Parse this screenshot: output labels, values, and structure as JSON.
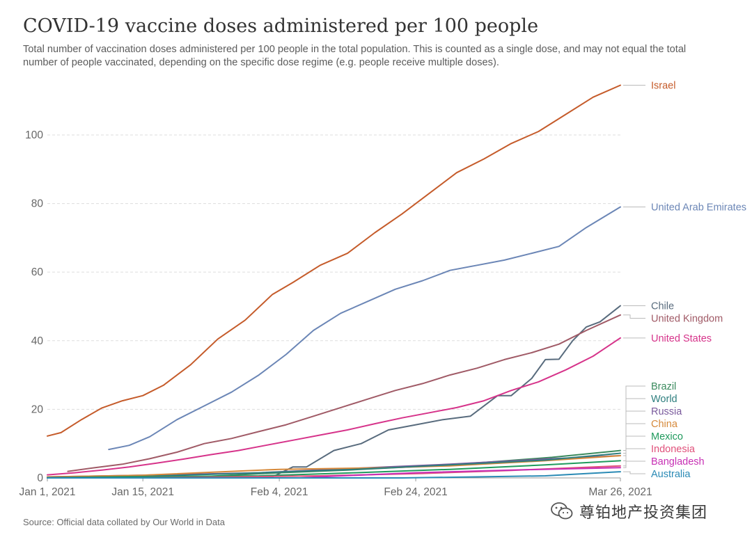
{
  "chart_data": {
    "type": "line",
    "title": "COVID-19 vaccine doses administered per 100 people",
    "subtitle": "Total number of vaccination doses administered per 100 people in the total population. This is counted as a single dose, and may not equal the total number of people vaccinated, depending on the specific dose regime (e.g. people receive multiple doses).",
    "source": "Source: Official data collated by Our World in Data",
    "x_range": [
      "2021-01-01",
      "2021-03-26"
    ],
    "x_ticks": [
      {
        "date": "2021-01-01",
        "label": "Jan 1, 2021"
      },
      {
        "date": "2021-01-15",
        "label": "Jan 15, 2021"
      },
      {
        "date": "2021-02-04",
        "label": "Feb 4, 2021"
      },
      {
        "date": "2021-02-24",
        "label": "Feb 24, 2021"
      },
      {
        "date": "2021-03-26",
        "label": "Mar 26, 2021"
      }
    ],
    "ylim": [
      0,
      115
    ],
    "y_ticks": [
      0,
      20,
      40,
      60,
      80,
      100
    ],
    "grid": "horizontal-dashed",
    "legend": "right-side-line-labels",
    "series": [
      {
        "name": "Israel",
        "color": "#c55b2a",
        "points": [
          [
            "2021-01-01",
            12.2
          ],
          [
            "2021-01-03",
            13.2
          ],
          [
            "2021-01-06",
            17.0
          ],
          [
            "2021-01-09",
            20.4
          ],
          [
            "2021-01-12",
            22.5
          ],
          [
            "2021-01-15",
            24.0
          ],
          [
            "2021-01-18",
            27.0
          ],
          [
            "2021-01-22",
            33.0
          ],
          [
            "2021-01-26",
            40.5
          ],
          [
            "2021-01-30",
            46.0
          ],
          [
            "2021-02-03",
            53.5
          ],
          [
            "2021-02-06",
            57.0
          ],
          [
            "2021-02-10",
            62.0
          ],
          [
            "2021-02-14",
            65.5
          ],
          [
            "2021-02-18",
            71.5
          ],
          [
            "2021-02-22",
            77.0
          ],
          [
            "2021-02-26",
            83.0
          ],
          [
            "2021-03-02",
            89.0
          ],
          [
            "2021-03-06",
            93.0
          ],
          [
            "2021-03-10",
            97.5
          ],
          [
            "2021-03-14",
            101.0
          ],
          [
            "2021-03-18",
            106.0
          ],
          [
            "2021-03-22",
            111.0
          ],
          [
            "2021-03-26",
            114.5
          ]
        ]
      },
      {
        "name": "United Arab Emirates",
        "color": "#6b86b6",
        "points": [
          [
            "2021-01-10",
            8.3
          ],
          [
            "2021-01-13",
            9.5
          ],
          [
            "2021-01-16",
            12.0
          ],
          [
            "2021-01-20",
            17.0
          ],
          [
            "2021-01-24",
            21.0
          ],
          [
            "2021-01-28",
            25.0
          ],
          [
            "2021-02-01",
            30.0
          ],
          [
            "2021-02-05",
            36.0
          ],
          [
            "2021-02-09",
            43.0
          ],
          [
            "2021-02-13",
            48.0
          ],
          [
            "2021-02-17",
            51.5
          ],
          [
            "2021-02-21",
            55.0
          ],
          [
            "2021-02-25",
            57.5
          ],
          [
            "2021-03-01",
            60.5
          ],
          [
            "2021-03-05",
            62.0
          ],
          [
            "2021-03-09",
            63.5
          ],
          [
            "2021-03-13",
            65.5
          ],
          [
            "2021-03-17",
            67.5
          ],
          [
            "2021-03-21",
            73.0
          ],
          [
            "2021-03-26",
            79.0
          ]
        ]
      },
      {
        "name": "Chile",
        "color": "#586b7d",
        "points": [
          [
            "2021-01-01",
            0.0
          ],
          [
            "2021-01-20",
            0.1
          ],
          [
            "2021-02-03",
            0.3
          ],
          [
            "2021-02-06",
            3.2
          ],
          [
            "2021-02-08",
            3.2
          ],
          [
            "2021-02-12",
            8.0
          ],
          [
            "2021-02-16",
            10.0
          ],
          [
            "2021-02-20",
            14.0
          ],
          [
            "2021-02-24",
            15.5
          ],
          [
            "2021-02-28",
            17.0
          ],
          [
            "2021-03-04",
            18.0
          ],
          [
            "2021-03-08",
            24.0
          ],
          [
            "2021-03-10",
            24.0
          ],
          [
            "2021-03-13",
            29.0
          ],
          [
            "2021-03-15",
            34.5
          ],
          [
            "2021-03-17",
            34.6
          ],
          [
            "2021-03-19",
            40.0
          ],
          [
            "2021-03-21",
            44.0
          ],
          [
            "2021-03-23",
            45.5
          ],
          [
            "2021-03-26",
            50.2
          ]
        ]
      },
      {
        "name": "United Kingdom",
        "color": "#a05a66",
        "points": [
          [
            "2021-01-04",
            1.9
          ],
          [
            "2021-01-08",
            3.0
          ],
          [
            "2021-01-12",
            4.0
          ],
          [
            "2021-01-16",
            5.6
          ],
          [
            "2021-01-20",
            7.5
          ],
          [
            "2021-01-24",
            10.0
          ],
          [
            "2021-01-28",
            11.5
          ],
          [
            "2021-02-01",
            13.5
          ],
          [
            "2021-02-05",
            15.5
          ],
          [
            "2021-02-09",
            18.0
          ],
          [
            "2021-02-13",
            20.5
          ],
          [
            "2021-02-17",
            23.0
          ],
          [
            "2021-02-21",
            25.5
          ],
          [
            "2021-02-25",
            27.5
          ],
          [
            "2021-03-01",
            30.0
          ],
          [
            "2021-03-05",
            32.0
          ],
          [
            "2021-03-09",
            34.5
          ],
          [
            "2021-03-13",
            36.5
          ],
          [
            "2021-03-17",
            39.0
          ],
          [
            "2021-03-21",
            43.0
          ],
          [
            "2021-03-26",
            47.5
          ]
        ]
      },
      {
        "name": "United States",
        "color": "#d6338a",
        "points": [
          [
            "2021-01-01",
            0.9
          ],
          [
            "2021-01-05",
            1.5
          ],
          [
            "2021-01-09",
            2.3
          ],
          [
            "2021-01-13",
            3.2
          ],
          [
            "2021-01-17",
            4.3
          ],
          [
            "2021-01-21",
            5.5
          ],
          [
            "2021-01-25",
            6.8
          ],
          [
            "2021-01-29",
            8.0
          ],
          [
            "2021-02-02",
            9.5
          ],
          [
            "2021-02-06",
            11.0
          ],
          [
            "2021-02-10",
            12.5
          ],
          [
            "2021-02-14",
            14.0
          ],
          [
            "2021-02-18",
            15.8
          ],
          [
            "2021-02-22",
            17.5
          ],
          [
            "2021-02-26",
            19.0
          ],
          [
            "2021-03-02",
            20.5
          ],
          [
            "2021-03-06",
            22.5
          ],
          [
            "2021-03-10",
            25.5
          ],
          [
            "2021-03-14",
            28.0
          ],
          [
            "2021-03-18",
            31.5
          ],
          [
            "2021-03-22",
            35.5
          ],
          [
            "2021-03-26",
            40.8
          ]
        ]
      },
      {
        "name": "Brazil",
        "color": "#3a8a5d",
        "points": [
          [
            "2021-01-18",
            0.0
          ],
          [
            "2021-01-25",
            0.5
          ],
          [
            "2021-02-04",
            1.5
          ],
          [
            "2021-02-14",
            2.3
          ],
          [
            "2021-02-24",
            3.3
          ],
          [
            "2021-03-06",
            4.5
          ],
          [
            "2021-03-16",
            6.0
          ],
          [
            "2021-03-26",
            8.0
          ]
        ]
      },
      {
        "name": "Russia",
        "color": "#7a5a9c",
        "points": [
          [
            "2021-01-01",
            0.3
          ],
          [
            "2021-01-15",
            0.8
          ],
          [
            "2021-02-01",
            1.5
          ],
          [
            "2021-02-15",
            2.8
          ],
          [
            "2021-03-01",
            4.0
          ],
          [
            "2021-03-15",
            5.5
          ],
          [
            "2021-03-26",
            6.5
          ]
        ]
      },
      {
        "name": "China",
        "color": "#d6893a",
        "points": [
          [
            "2021-01-01",
            0.3
          ],
          [
            "2021-01-15",
            0.8
          ],
          [
            "2021-02-04",
            2.5
          ],
          [
            "2021-02-20",
            3.0
          ],
          [
            "2021-03-01",
            3.5
          ],
          [
            "2021-03-15",
            5.0
          ],
          [
            "2021-03-26",
            6.5
          ]
        ]
      },
      {
        "name": "World",
        "color": "#2d7e7e",
        "points": [
          [
            "2021-01-01",
            0.1
          ],
          [
            "2021-01-15",
            0.4
          ],
          [
            "2021-02-01",
            1.5
          ],
          [
            "2021-02-15",
            2.5
          ],
          [
            "2021-03-01",
            3.8
          ],
          [
            "2021-03-15",
            5.2
          ],
          [
            "2021-03-26",
            7.2
          ]
        ]
      },
      {
        "name": "Mexico",
        "color": "#1f9a5c",
        "points": [
          [
            "2021-01-01",
            0.0
          ],
          [
            "2021-01-15",
            0.3
          ],
          [
            "2021-02-01",
            0.6
          ],
          [
            "2021-02-15",
            1.5
          ],
          [
            "2021-03-01",
            2.5
          ],
          [
            "2021-03-15",
            3.8
          ],
          [
            "2021-03-26",
            5.0
          ]
        ]
      },
      {
        "name": "Indonesia",
        "color": "#e0507a",
        "points": [
          [
            "2021-01-13",
            0.0
          ],
          [
            "2021-01-25",
            0.2
          ],
          [
            "2021-02-10",
            0.6
          ],
          [
            "2021-02-25",
            1.3
          ],
          [
            "2021-03-10",
            2.2
          ],
          [
            "2021-03-26",
            3.5
          ]
        ]
      },
      {
        "name": "Bangladesh",
        "color": "#c72fb4",
        "points": [
          [
            "2021-01-27",
            0.0
          ],
          [
            "2021-02-07",
            0.0
          ],
          [
            "2021-02-12",
            0.5
          ],
          [
            "2021-02-24",
            1.5
          ],
          [
            "2021-03-10",
            2.3
          ],
          [
            "2021-03-26",
            3.0
          ]
        ]
      },
      {
        "name": "Australia",
        "color": "#2a8ab5",
        "points": [
          [
            "2021-01-01",
            0.0
          ],
          [
            "2021-02-22",
            0.0
          ],
          [
            "2021-03-05",
            0.3
          ],
          [
            "2021-03-15",
            0.6
          ],
          [
            "2021-03-26",
            1.8
          ]
        ]
      }
    ]
  },
  "watermark": {
    "text": "尊铂地产投资集团",
    "icon": "wechat-icon"
  }
}
